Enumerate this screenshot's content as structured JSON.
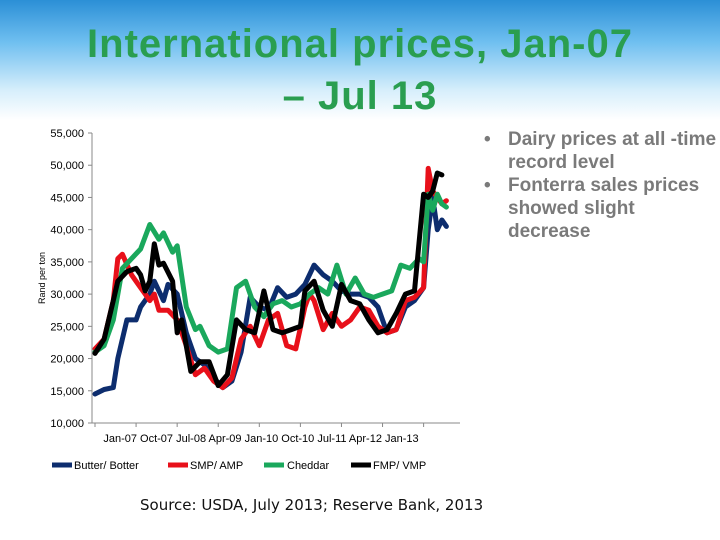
{
  "title": {
    "line1": "International prices, Jan-07",
    "line2": "– Jul 13"
  },
  "bullets": [
    "Dairy prices at all -time record level",
    "Fonterra sales prices showed slight decrease"
  ],
  "source": "Source: USDA, July  2013; Reserve Bank, 2013",
  "chart_data": {
    "type": "line",
    "title": "",
    "xlabel": "",
    "ylabel": "Rand per ton",
    "ylim": [
      10000,
      55000
    ],
    "yticks": [
      10000,
      15000,
      20000,
      25000,
      30000,
      35000,
      40000,
      45000,
      50000,
      55000
    ],
    "ytick_labels": [
      "10,000",
      "15,000",
      "20,000",
      "25,000",
      "30,000",
      "35,000",
      "40,000",
      "45,000",
      "50,000",
      "55,000"
    ],
    "x_start": "Jan-07",
    "x_count": 79,
    "xtick_labels": [
      "Jan-07",
      "Oct-07",
      "Jul-08",
      "Apr-09",
      "Jan-10",
      "Oct-10",
      "Jul-11",
      "Apr-12",
      "Jan-13"
    ],
    "xtick_index": [
      0,
      9,
      18,
      27,
      36,
      45,
      54,
      63,
      72
    ],
    "x_text": "Jan-07 Oct-07 Jul-08 Apr-09 Jan-10 Oct-10 Jul-11 Apr-12 Jan-13",
    "series": [
      {
        "name": "Butter/ Botter",
        "color": "#0d2d6e",
        "anchors": [
          [
            0,
            14500
          ],
          [
            2,
            15200
          ],
          [
            4,
            15500
          ],
          [
            5,
            20000
          ],
          [
            7,
            26000
          ],
          [
            9,
            26000
          ],
          [
            10,
            28000
          ],
          [
            12,
            30000
          ],
          [
            13,
            32000
          ],
          [
            15,
            29000
          ],
          [
            16,
            31500
          ],
          [
            18,
            30000
          ],
          [
            20,
            24000
          ],
          [
            22,
            20000
          ],
          [
            24,
            19000
          ],
          [
            26,
            17000
          ],
          [
            28,
            15500
          ],
          [
            30,
            16500
          ],
          [
            32,
            21000
          ],
          [
            34,
            29500
          ],
          [
            36,
            28000
          ],
          [
            38,
            27500
          ],
          [
            40,
            31000
          ],
          [
            42,
            29500
          ],
          [
            44,
            30000
          ],
          [
            46,
            31500
          ],
          [
            48,
            34500
          ],
          [
            50,
            33000
          ],
          [
            52,
            32000
          ],
          [
            54,
            30500
          ],
          [
            56,
            30000
          ],
          [
            58,
            30000
          ],
          [
            60,
            29500
          ],
          [
            62,
            28000
          ],
          [
            64,
            24000
          ],
          [
            66,
            24500
          ],
          [
            68,
            28000
          ],
          [
            70,
            29000
          ],
          [
            72,
            31000
          ],
          [
            73,
            40000
          ],
          [
            74,
            45000
          ],
          [
            75,
            40000
          ],
          [
            76,
            41500
          ],
          [
            77,
            40500
          ]
        ]
      },
      {
        "name": "SMP/ AMP",
        "color": "#e8101a",
        "anchors": [
          [
            0,
            21500
          ],
          [
            2,
            23000
          ],
          [
            4,
            29000
          ],
          [
            5,
            35500
          ],
          [
            6,
            36200
          ],
          [
            8,
            33000
          ],
          [
            10,
            31000
          ],
          [
            12,
            29000
          ],
          [
            13,
            30000
          ],
          [
            14,
            27500
          ],
          [
            16,
            27500
          ],
          [
            18,
            26000
          ],
          [
            20,
            22000
          ],
          [
            22,
            17500
          ],
          [
            24,
            18500
          ],
          [
            26,
            16500
          ],
          [
            28,
            15500
          ],
          [
            30,
            17000
          ],
          [
            32,
            23000
          ],
          [
            34,
            25000
          ],
          [
            36,
            22000
          ],
          [
            38,
            26000
          ],
          [
            40,
            27000
          ],
          [
            42,
            22000
          ],
          [
            44,
            21500
          ],
          [
            46,
            28000
          ],
          [
            47,
            30000
          ],
          [
            48,
            29000
          ],
          [
            50,
            24500
          ],
          [
            52,
            27000
          ],
          [
            54,
            25000
          ],
          [
            56,
            26000
          ],
          [
            58,
            28000
          ],
          [
            60,
            27500
          ],
          [
            62,
            25000
          ],
          [
            64,
            24000
          ],
          [
            66,
            24500
          ],
          [
            68,
            29000
          ],
          [
            70,
            29500
          ],
          [
            72,
            31000
          ],
          [
            73,
            49500
          ],
          [
            74,
            46000
          ],
          [
            75,
            45000
          ],
          [
            76,
            44000
          ],
          [
            77,
            44500
          ]
        ]
      },
      {
        "name": "Cheddar",
        "color": "#1aa85c",
        "anchors": [
          [
            0,
            21000
          ],
          [
            2,
            22000
          ],
          [
            4,
            26000
          ],
          [
            6,
            34000
          ],
          [
            8,
            35500
          ],
          [
            10,
            37000
          ],
          [
            12,
            40800
          ],
          [
            14,
            38500
          ],
          [
            15,
            39500
          ],
          [
            17,
            36500
          ],
          [
            18,
            37500
          ],
          [
            20,
            28000
          ],
          [
            22,
            24500
          ],
          [
            23,
            25000
          ],
          [
            25,
            22000
          ],
          [
            27,
            21000
          ],
          [
            29,
            21500
          ],
          [
            31,
            31000
          ],
          [
            33,
            32000
          ],
          [
            35,
            28000
          ],
          [
            37,
            26500
          ],
          [
            39,
            28500
          ],
          [
            41,
            29000
          ],
          [
            43,
            28000
          ],
          [
            45,
            28500
          ],
          [
            47,
            30000
          ],
          [
            49,
            31000
          ],
          [
            51,
            30000
          ],
          [
            53,
            34500
          ],
          [
            55,
            30000
          ],
          [
            57,
            32500
          ],
          [
            59,
            30000
          ],
          [
            61,
            29500
          ],
          [
            63,
            30000
          ],
          [
            65,
            30500
          ],
          [
            67,
            34500
          ],
          [
            69,
            34000
          ],
          [
            71,
            35500
          ],
          [
            72,
            35000
          ],
          [
            73,
            45500
          ],
          [
            74,
            43000
          ],
          [
            75,
            45500
          ],
          [
            76,
            44000
          ],
          [
            77,
            43500
          ]
        ]
      },
      {
        "name": "FMP/ VMP",
        "color": "#000000",
        "anchors": [
          [
            0,
            20800
          ],
          [
            2,
            23000
          ],
          [
            4,
            29000
          ],
          [
            5,
            32000
          ],
          [
            7,
            33500
          ],
          [
            9,
            34000
          ],
          [
            10,
            33000
          ],
          [
            11,
            30500
          ],
          [
            12,
            32000
          ],
          [
            13,
            37800
          ],
          [
            14,
            34500
          ],
          [
            15,
            34800
          ],
          [
            17,
            32000
          ],
          [
            18,
            24000
          ],
          [
            19,
            26000
          ],
          [
            21,
            18000
          ],
          [
            23,
            19500
          ],
          [
            25,
            19500
          ],
          [
            27,
            15800
          ],
          [
            29,
            17500
          ],
          [
            31,
            26000
          ],
          [
            33,
            24500
          ],
          [
            35,
            24000
          ],
          [
            37,
            30500
          ],
          [
            39,
            24500
          ],
          [
            41,
            24000
          ],
          [
            43,
            24500
          ],
          [
            45,
            25000
          ],
          [
            46,
            30500
          ],
          [
            48,
            32000
          ],
          [
            50,
            27500
          ],
          [
            52,
            25000
          ],
          [
            54,
            31500
          ],
          [
            56,
            29000
          ],
          [
            58,
            28500
          ],
          [
            60,
            26000
          ],
          [
            62,
            24000
          ],
          [
            64,
            24500
          ],
          [
            66,
            27000
          ],
          [
            68,
            30000
          ],
          [
            70,
            30500
          ],
          [
            72,
            45500
          ],
          [
            73,
            45000
          ],
          [
            74,
            46000
          ],
          [
            75,
            48800
          ],
          [
            76,
            48500
          ]
        ]
      }
    ]
  }
}
